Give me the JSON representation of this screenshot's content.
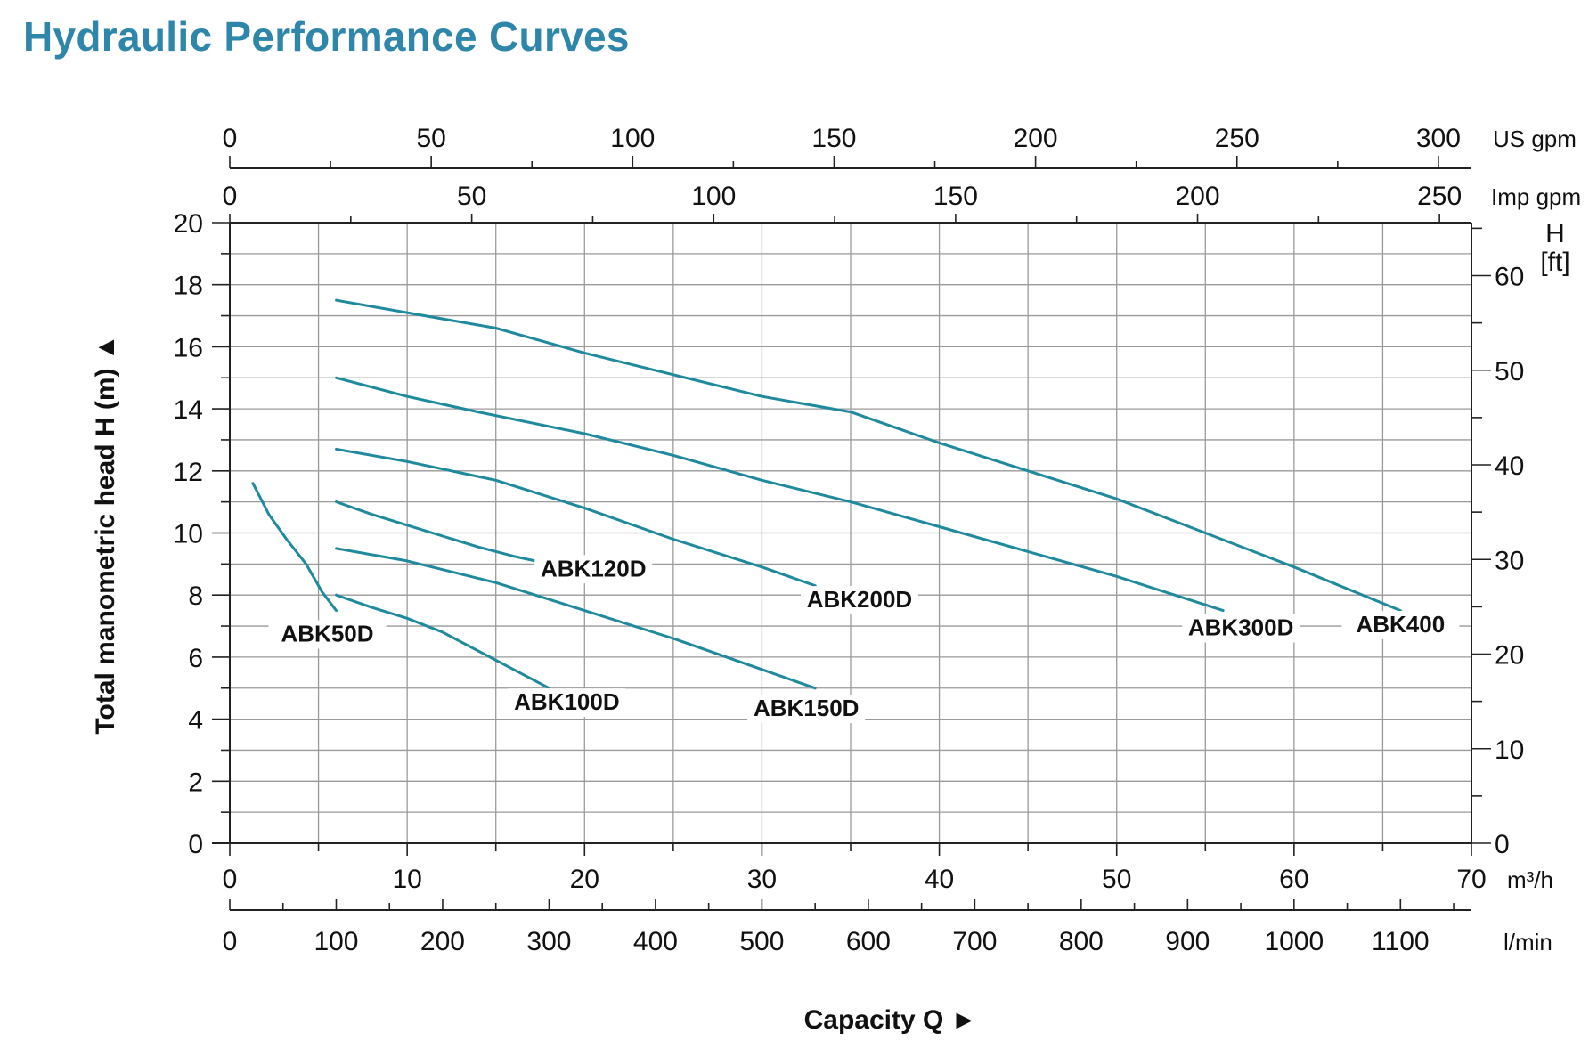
{
  "page": {
    "title": "Hydraulic Performance Curves"
  },
  "colors": {
    "title": "#2e86ab",
    "curve": "#1f8a9e",
    "grid": "#9a9a9a",
    "axis": "#222222"
  },
  "chart_data": {
    "type": "line",
    "title": "Hydraulic Performance Curves",
    "xlabel": "Capacity Q",
    "ylabel": "Total manometric head H (m)",
    "grid": true,
    "x_axes": {
      "m3h": {
        "unit": "m³/h",
        "range": [
          0,
          70
        ],
        "ticks": [
          "0",
          "10",
          "20",
          "30",
          "40",
          "50",
          "60",
          "70"
        ]
      },
      "lmin": {
        "unit": "l/min",
        "range": [
          0,
          1166.7
        ],
        "ticks": [
          "0",
          "100",
          "200",
          "300",
          "400",
          "500",
          "600",
          "700",
          "800",
          "900",
          "1000",
          "1100"
        ]
      },
      "usgpm": {
        "unit": "US gpm",
        "range": [
          0,
          308.2
        ],
        "ticks": [
          "0",
          "50",
          "100",
          "150",
          "200",
          "250",
          "300"
        ]
      },
      "impgpm": {
        "unit": "Imp gpm",
        "range": [
          0,
          256.6
        ],
        "ticks": [
          "0",
          "50",
          "100",
          "150",
          "200",
          "250"
        ]
      }
    },
    "y_axes": {
      "m": {
        "unit": "H (m)",
        "range": [
          0,
          20
        ],
        "ticks": [
          "0",
          "2",
          "4",
          "6",
          "8",
          "10",
          "12",
          "14",
          "16",
          "18",
          "20"
        ]
      },
      "ft": {
        "unit_line1": "H",
        "unit_line2": "[ft]",
        "range": [
          0,
          65.6
        ],
        "ticks": [
          "0",
          "10",
          "20",
          "30",
          "40",
          "50",
          "60"
        ]
      }
    },
    "x_unit": "m³/h",
    "y_unit": "m",
    "series": [
      {
        "name": "ABK50D",
        "label_q": 5.5,
        "label_h": 6.5,
        "points": [
          [
            1.3,
            11.6
          ],
          [
            2.2,
            10.6
          ],
          [
            3.2,
            9.8
          ],
          [
            4.3,
            9.0
          ],
          [
            5.2,
            8.1
          ],
          [
            6.0,
            7.5
          ]
        ]
      },
      {
        "name": "ABK100D",
        "label_q": 19,
        "label_h": 4.3,
        "points": [
          [
            6,
            8.0
          ],
          [
            8,
            7.6
          ],
          [
            10,
            7.25
          ],
          [
            12,
            6.8
          ],
          [
            14,
            6.2
          ],
          [
            16,
            5.6
          ],
          [
            18,
            5.0
          ]
        ]
      },
      {
        "name": "ABK120D",
        "label_q": 20.5,
        "label_h": 8.6,
        "points": [
          [
            6,
            11.0
          ],
          [
            8,
            10.6
          ],
          [
            10,
            10.25
          ],
          [
            12,
            9.9
          ],
          [
            14,
            9.55
          ],
          [
            16,
            9.25
          ],
          [
            18,
            9.0
          ]
        ]
      },
      {
        "name": "ABK150D",
        "label_q": 32.5,
        "label_h": 4.1,
        "points": [
          [
            6,
            9.5
          ],
          [
            10,
            9.1
          ],
          [
            15,
            8.4
          ],
          [
            20,
            7.5
          ],
          [
            25,
            6.6
          ],
          [
            30,
            5.6
          ],
          [
            33,
            5.0
          ]
        ]
      },
      {
        "name": "ABK200D",
        "label_q": 35.5,
        "label_h": 7.6,
        "points": [
          [
            6,
            12.7
          ],
          [
            10,
            12.3
          ],
          [
            15,
            11.7
          ],
          [
            20,
            10.8
          ],
          [
            25,
            9.8
          ],
          [
            30,
            8.9
          ],
          [
            33,
            8.3
          ]
        ]
      },
      {
        "name": "ABK300D",
        "label_q": 57,
        "label_h": 6.7,
        "points": [
          [
            6,
            15.0
          ],
          [
            10,
            14.4
          ],
          [
            14,
            13.9
          ],
          [
            20,
            13.2
          ],
          [
            25,
            12.5
          ],
          [
            30,
            11.7
          ],
          [
            35,
            11.0
          ],
          [
            40,
            10.2
          ],
          [
            45,
            9.4
          ],
          [
            50,
            8.6
          ],
          [
            56,
            7.5
          ]
        ]
      },
      {
        "name": "ABK400",
        "label_q": 66,
        "label_h": 6.8,
        "points": [
          [
            6,
            17.5
          ],
          [
            10,
            17.1
          ],
          [
            15,
            16.6
          ],
          [
            20,
            15.8
          ],
          [
            25,
            15.1
          ],
          [
            30,
            14.4
          ],
          [
            35,
            13.9
          ],
          [
            40,
            12.9
          ],
          [
            45,
            12.0
          ],
          [
            50,
            11.1
          ],
          [
            55,
            10.0
          ],
          [
            60,
            8.9
          ],
          [
            66,
            7.5
          ]
        ]
      }
    ]
  }
}
